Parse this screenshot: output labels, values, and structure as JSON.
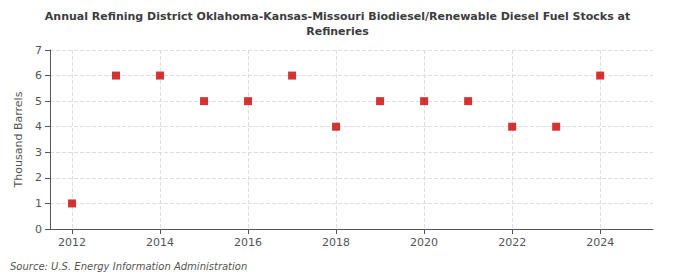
{
  "chart_data": {
    "type": "scatter",
    "title": "Annual Refining District Oklahoma-Kansas-Missouri Biodiesel/Renewable Diesel Fuel Stocks at\nRefineries",
    "ylabel": "Thousand Barrels",
    "annotation": "Source: U.S. Energy Information Administration",
    "x": [
      2012,
      2013,
      2014,
      2015,
      2016,
      2017,
      2018,
      2019,
      2020,
      2021,
      2022,
      2023,
      2024
    ],
    "values": [
      1,
      6,
      6,
      5,
      5,
      6,
      4,
      5,
      5,
      5,
      4,
      4,
      6
    ],
    "color": "#cc0000",
    "marker": "square",
    "xlim": [
      2011.5,
      2025.2
    ],
    "xticks": [
      2012,
      2014,
      2016,
      2018,
      2020,
      2022,
      2024
    ],
    "ylim": [
      0,
      7
    ],
    "yticks": [
      0,
      1,
      2,
      3,
      4,
      5,
      6,
      7
    ],
    "grid": true
  }
}
